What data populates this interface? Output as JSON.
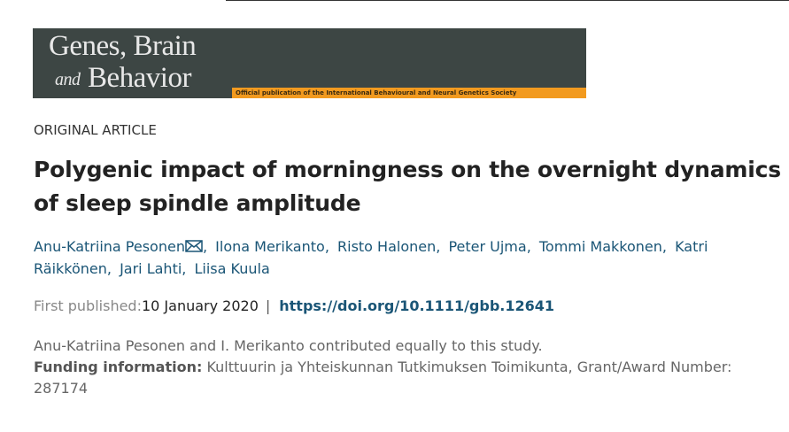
{
  "journal": {
    "name_line1": "Genes, Brain",
    "name_and": "and",
    "name_line2": "Behavior",
    "tagline": "Official publication of the International Behavioural and Neural Genetics Society"
  },
  "article_type": "ORIGINAL ARTICLE",
  "title": "Polygenic impact of morningness on the overnight dynamics of sleep spindle amplitude",
  "authors": [
    "Anu-Katriina Pesonen",
    "Ilona Merikanto",
    "Risto Halonen",
    "Peter Ujma",
    "Tommi Makkonen",
    "Katri Räikkönen",
    "Jari Lahti",
    "Liisa Kuula"
  ],
  "author_separator": ",",
  "publication": {
    "label": "First published:",
    "date": "10 January 2020",
    "separator": "|",
    "doi": "https://doi.org/10.1111/gbb.12641"
  },
  "note": "Anu-Katriina Pesonen and I. Merikanto contributed equally to this study.",
  "funding": {
    "label": "Funding information:",
    "text": "Kulttuurin ja Yhteiskunnan Tutkimuksen Toimikunta, Grant/Award Number: 287174"
  }
}
